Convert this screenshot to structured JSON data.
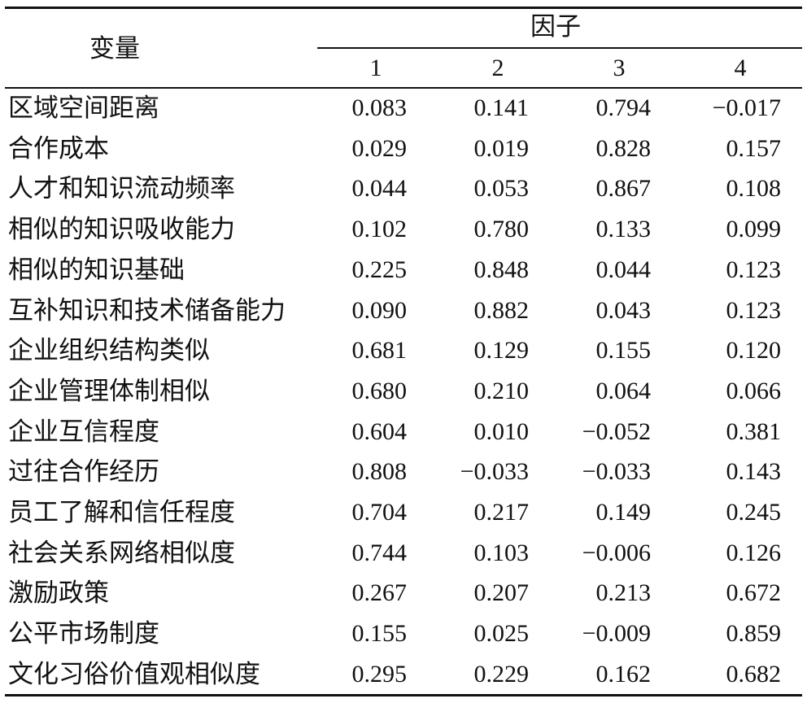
{
  "header": {
    "variable": "变量",
    "factor": "因子",
    "factor_numbers": [
      "1",
      "2",
      "3",
      "4"
    ]
  },
  "rows": [
    {
      "variable": "区域空间距离",
      "values": [
        "0.083",
        "0.141",
        "0.794",
        "−0.017"
      ]
    },
    {
      "variable": "合作成本",
      "values": [
        "0.029",
        "0.019",
        "0.828",
        "0.157"
      ]
    },
    {
      "variable": "人才和知识流动频率",
      "values": [
        "0.044",
        "0.053",
        "0.867",
        "0.108"
      ]
    },
    {
      "variable": "相似的知识吸收能力",
      "values": [
        "0.102",
        "0.780",
        "0.133",
        "0.099"
      ]
    },
    {
      "variable": "相似的知识基础",
      "values": [
        "0.225",
        "0.848",
        "0.044",
        "0.123"
      ]
    },
    {
      "variable": "互补知识和技术储备能力",
      "values": [
        "0.090",
        "0.882",
        "0.043",
        "0.123"
      ]
    },
    {
      "variable": "企业组织结构类似",
      "values": [
        "0.681",
        "0.129",
        "0.155",
        "0.120"
      ]
    },
    {
      "variable": "企业管理体制相似",
      "values": [
        "0.680",
        "0.210",
        "0.064",
        "0.066"
      ]
    },
    {
      "variable": "企业互信程度",
      "values": [
        "0.604",
        "0.010",
        "−0.052",
        "0.381"
      ]
    },
    {
      "variable": "过往合作经历",
      "values": [
        "0.808",
        "−0.033",
        "−0.033",
        "0.143"
      ]
    },
    {
      "variable": "员工了解和信任程度",
      "values": [
        "0.704",
        "0.217",
        "0.149",
        "0.245"
      ]
    },
    {
      "variable": "社会关系网络相似度",
      "values": [
        "0.744",
        "0.103",
        "−0.006",
        "0.126"
      ]
    },
    {
      "variable": "激励政策",
      "values": [
        "0.267",
        "0.207",
        "0.213",
        "0.672"
      ]
    },
    {
      "variable": "公平市场制度",
      "values": [
        "0.155",
        "0.025",
        "−0.009",
        "0.859"
      ]
    },
    {
      "variable": "文化习俗价值观相似度",
      "values": [
        "0.295",
        "0.229",
        "0.162",
        "0.682"
      ]
    }
  ]
}
